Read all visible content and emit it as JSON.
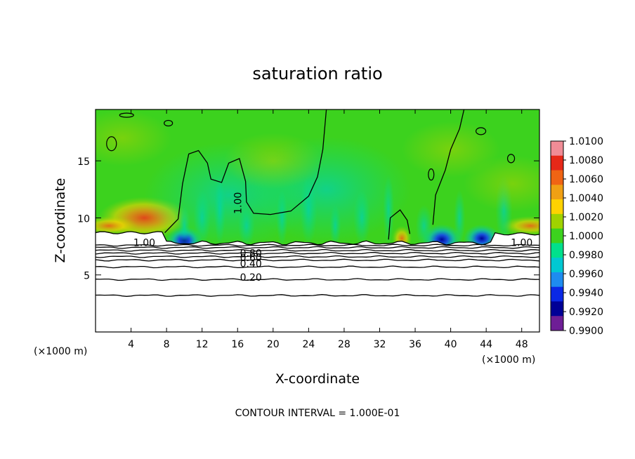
{
  "chart_data": {
    "type": "heatmap",
    "title": "saturation ratio",
    "xlabel": "X-coordinate",
    "ylabel": "Z-coordinate",
    "x_units": "(×1000 m)",
    "x_units_right": "(×1000 m)",
    "xlim": [
      0,
      50
    ],
    "ylim": [
      0,
      19.5
    ],
    "x_ticks": [
      4,
      8,
      12,
      16,
      20,
      24,
      28,
      32,
      36,
      40,
      44,
      48
    ],
    "y_ticks": [
      5,
      10,
      15
    ],
    "colorbar": {
      "range": [
        0.99,
        1.01
      ],
      "ticks": [
        "1.0100",
        "1.0080",
        "1.0060",
        "1.0040",
        "1.0020",
        "1.0000",
        "0.9980",
        "0.9960",
        "0.9940",
        "0.9920",
        "0.9900"
      ],
      "colors": [
        "#f08c96",
        "#e62818",
        "#f06414",
        "#f0a014",
        "#ffd200",
        "#a0d200",
        "#3cd21e",
        "#00e08c",
        "#00c8d2",
        "#1e8cf0",
        "#0a28e6",
        "#000096",
        "#6e1e96"
      ]
    },
    "contour_interval": "CONTOUR INTERVAL = 1.000E-01",
    "contour_levels": [
      0.1,
      0.2,
      0.3,
      0.4,
      0.5,
      0.6,
      0.7,
      0.8,
      0.9
    ],
    "contour_labels": [
      "1.00",
      "1.00",
      "1.00",
      "0.80",
      "0.60",
      "0.40",
      "0.20"
    ],
    "field": {
      "background": 1.0,
      "cloud_base_z": 7.8,
      "features": [
        {
          "x": 5.5,
          "z": 10.0,
          "value": 1.006
        },
        {
          "x": 1.5,
          "z": 9.3,
          "value": 1.005
        },
        {
          "x": 49.0,
          "z": 9.3,
          "value": 1.004
        },
        {
          "x": 34.5,
          "z": 8.2,
          "value": 1.003
        },
        {
          "x": 10.0,
          "z": 8.0,
          "value": 0.9935
        },
        {
          "x": 39.0,
          "z": 8.1,
          "value": 0.9925
        },
        {
          "x": 43.5,
          "z": 8.2,
          "value": 0.9945
        },
        {
          "x": 26.0,
          "z": 12.5,
          "value": 0.9975
        },
        {
          "x": 15.0,
          "z": 12.0,
          "value": 0.998
        }
      ]
    }
  }
}
